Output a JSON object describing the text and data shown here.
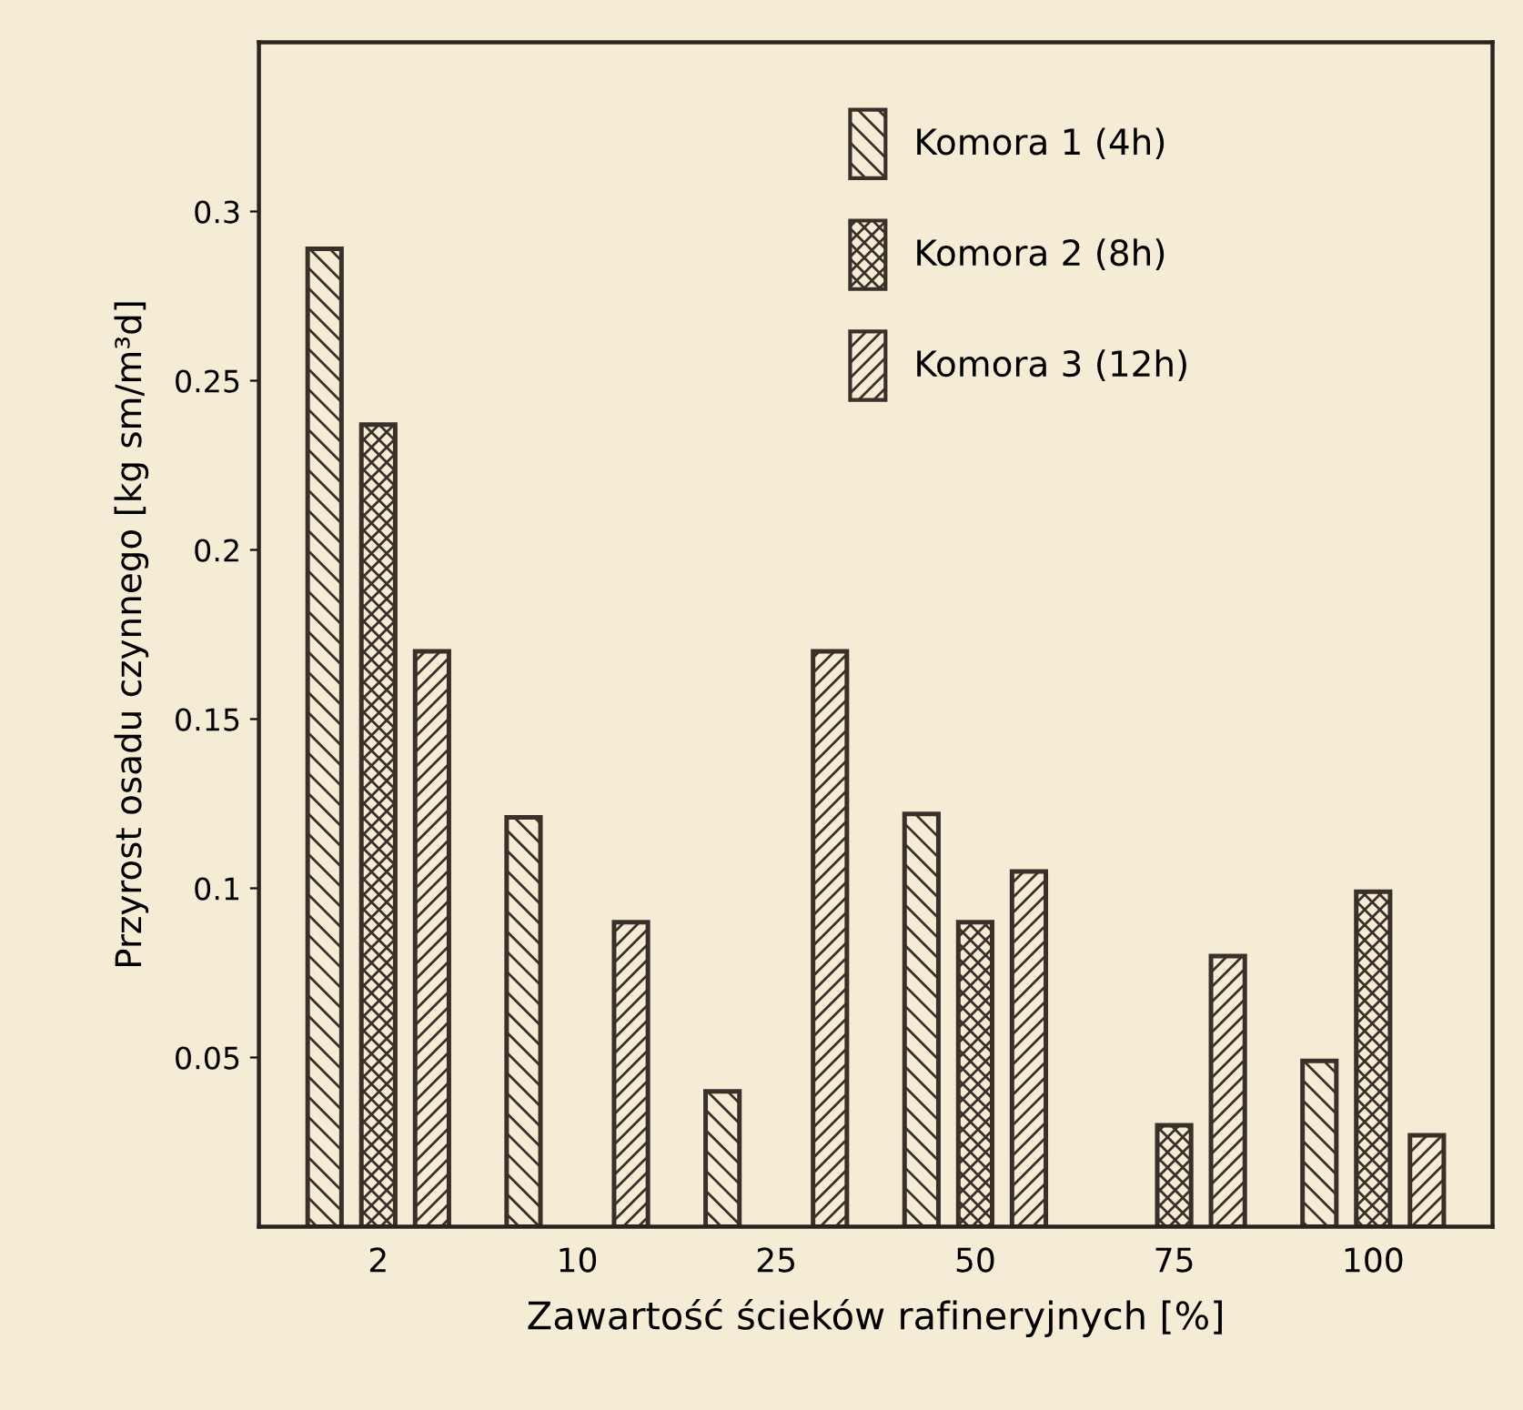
{
  "chart_data": {
    "type": "bar",
    "xlabel": "Zawartość ścieków rafineryjnych [%]",
    "ylabel": "Przyrost osadu czynnego [kg sm/m³d]",
    "categories": [
      "2",
      "10",
      "25",
      "50",
      "75",
      "100"
    ],
    "series": [
      {
        "name": "Komora 1 (4h)",
        "color": "#3a302a",
        "values": [
          0.289,
          0.121,
          0.04,
          0.122,
          null,
          0.049
        ]
      },
      {
        "name": "Komora 2 (8h)",
        "color": "#3a302a",
        "values": [
          0.237,
          null,
          null,
          0.09,
          0.03,
          0.099
        ]
      },
      {
        "name": "Komora 3 (12h)",
        "color": "#3a302a",
        "values": [
          0.17,
          0.09,
          0.17,
          0.105,
          0.08,
          0.027
        ]
      }
    ],
    "ylim": [
      0,
      0.35
    ],
    "yticks": [
      0.05,
      0.1,
      0.15,
      0.2,
      0.25,
      0.3
    ],
    "grid": false,
    "legend": "top right"
  }
}
